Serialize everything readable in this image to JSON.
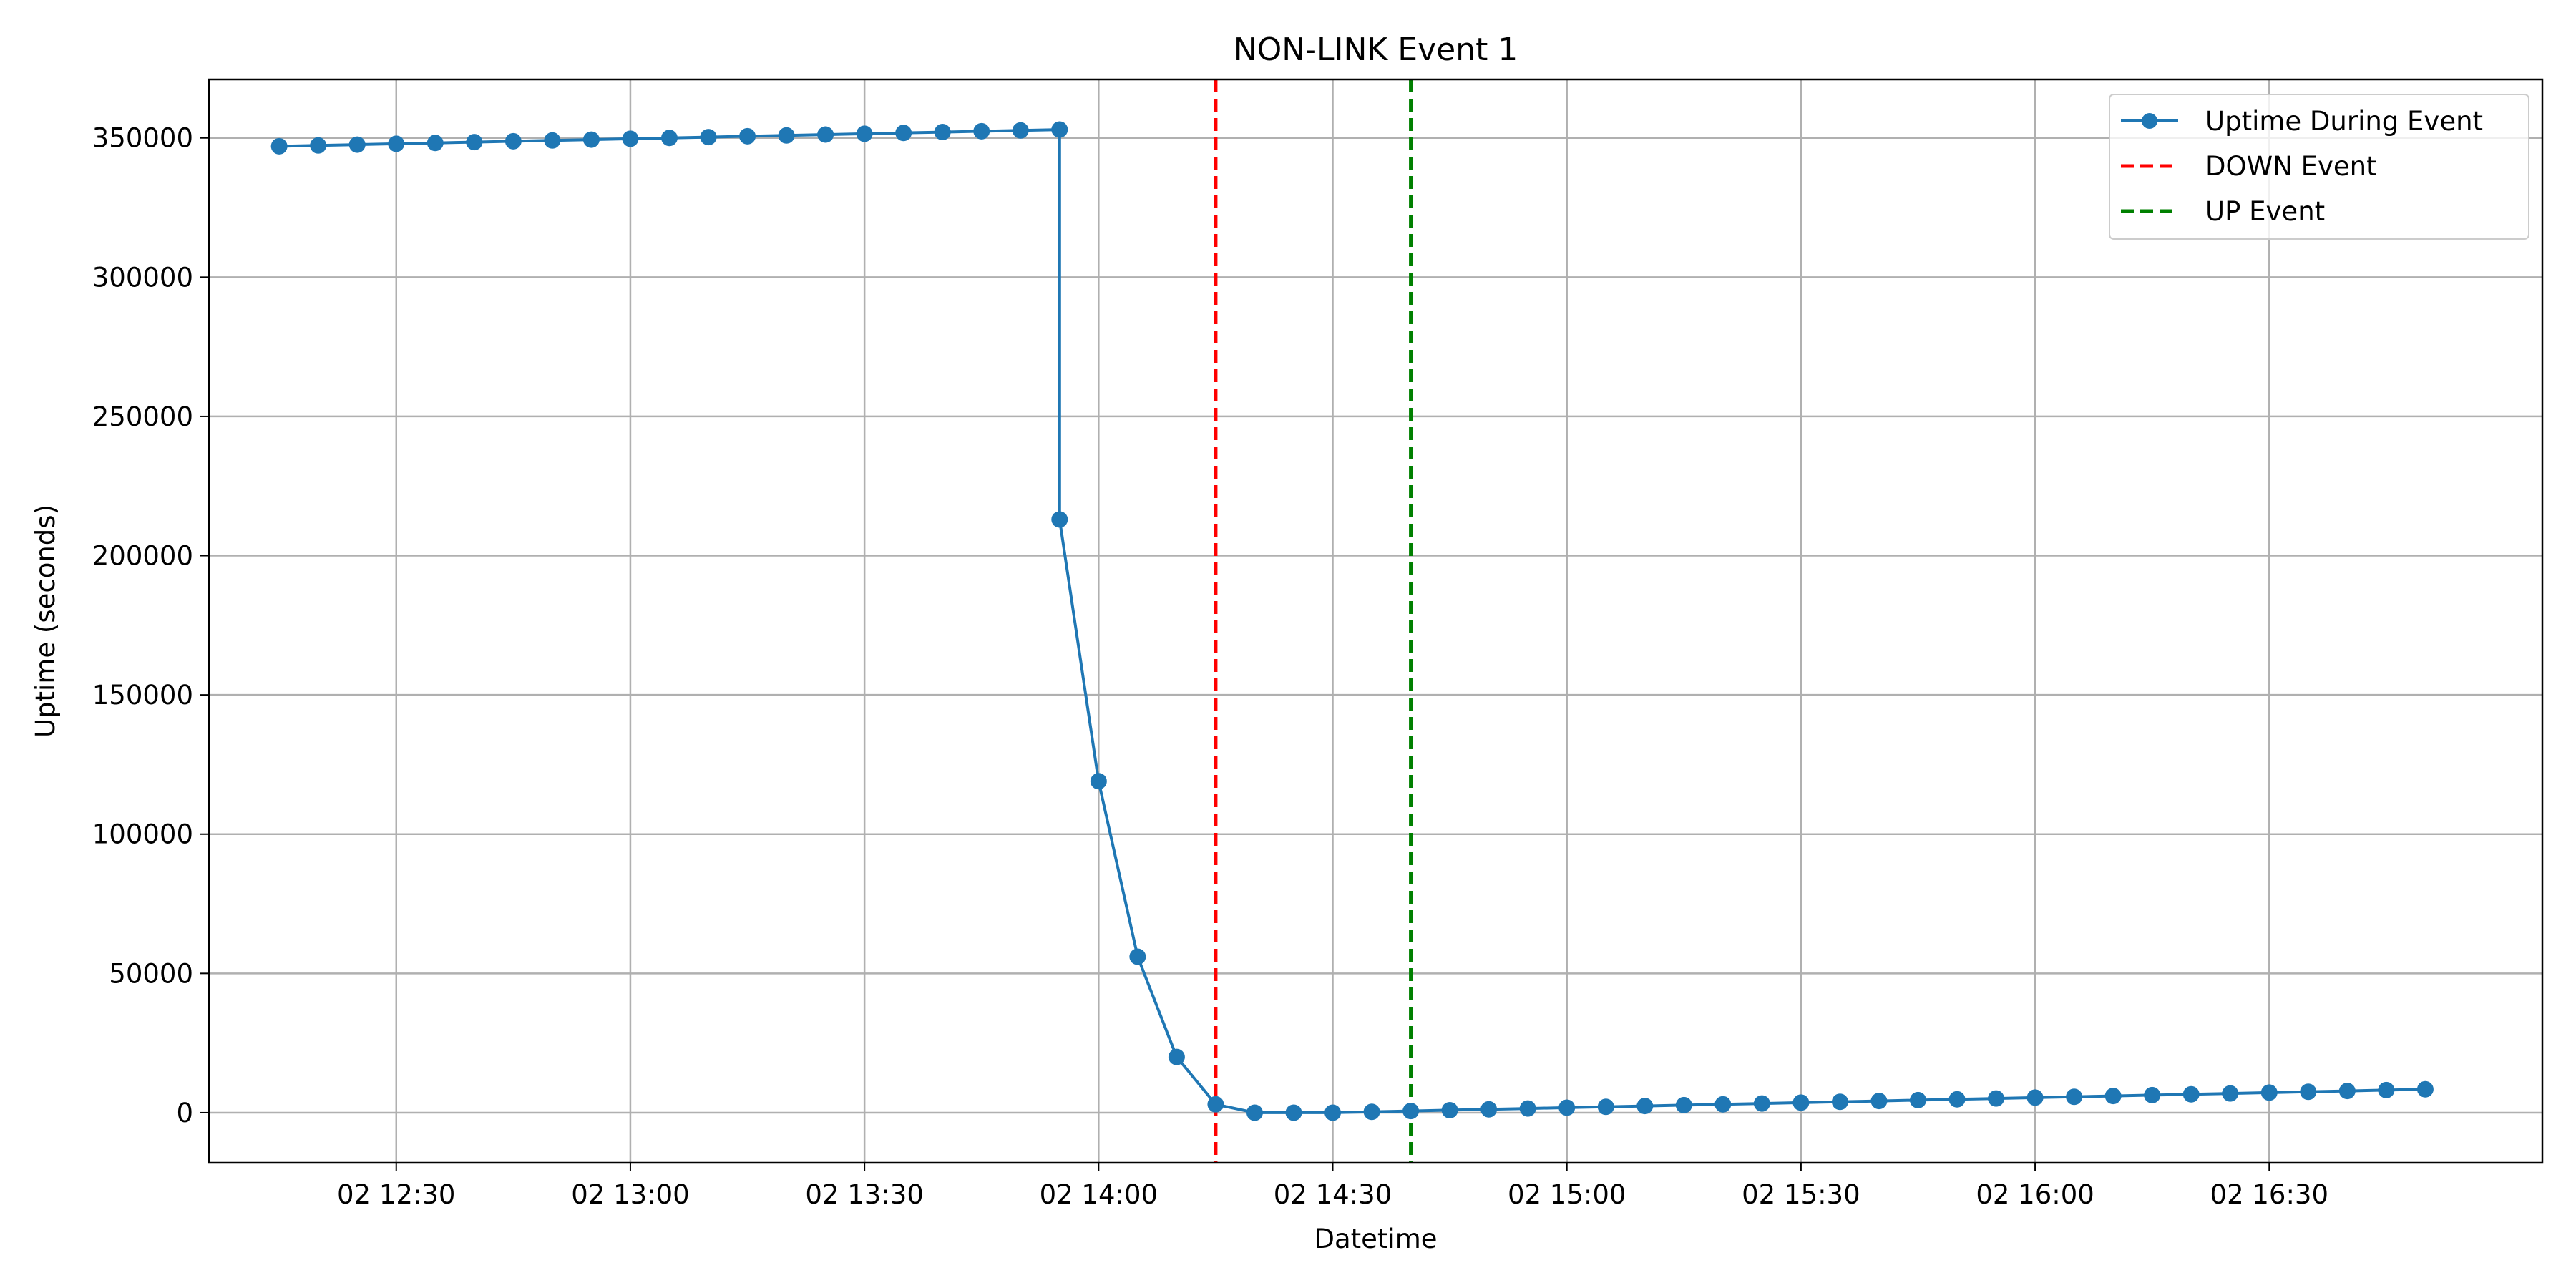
{
  "chart_data": {
    "type": "line",
    "title": "NON-LINK Event 1",
    "xlabel": "Datetime",
    "ylabel": "Uptime (seconds)",
    "x_ticks": [
      "02 12:30",
      "02 13:00",
      "02 13:30",
      "02 14:00",
      "02 14:30",
      "02 15:00",
      "02 15:30",
      "02 16:00",
      "02 16:30"
    ],
    "x_tick_values": [
      "12:30",
      "13:00",
      "13:30",
      "14:00",
      "14:30",
      "15:00",
      "15:30",
      "16:00",
      "16:30"
    ],
    "xlim": [
      "12:06",
      "17:05"
    ],
    "ylim": [
      -18000,
      371000
    ],
    "y_ticks": [
      0,
      50000,
      100000,
      150000,
      200000,
      250000,
      300000,
      350000
    ],
    "y_tick_labels": [
      "0",
      "50000",
      "100000",
      "150000",
      "200000",
      "250000",
      "300000",
      "350000"
    ],
    "grid": true,
    "legend_position": "top-right",
    "series": [
      {
        "name": "Uptime During Event",
        "color": "#1f77b4",
        "marker": "circle",
        "x": [
          "12:15",
          "12:20",
          "12:25",
          "12:30",
          "12:35",
          "12:40",
          "12:45",
          "12:50",
          "12:55",
          "13:00",
          "13:05",
          "13:10",
          "13:15",
          "13:20",
          "13:25",
          "13:30",
          "13:35",
          "13:40",
          "13:45",
          "13:50",
          "13:55",
          "13:55",
          "14:00",
          "14:05",
          "14:10",
          "14:15",
          "14:20",
          "14:25",
          "14:30",
          "14:35",
          "14:40",
          "14:45",
          "14:50",
          "14:55",
          "15:00",
          "15:05",
          "15:10",
          "15:15",
          "15:20",
          "15:25",
          "15:30",
          "15:35",
          "15:40",
          "15:45",
          "15:50",
          "15:55",
          "16:00",
          "16:05",
          "16:10",
          "16:15",
          "16:20",
          "16:25",
          "16:30",
          "16:35",
          "16:40",
          "16:45",
          "16:50"
        ],
        "y": [
          347000,
          347300,
          347600,
          347900,
          348200,
          348500,
          348800,
          349100,
          349400,
          349700,
          350000,
          350300,
          350600,
          350900,
          351200,
          351500,
          351800,
          352100,
          352400,
          352700,
          353000,
          213000,
          119000,
          56000,
          20000,
          3000,
          0,
          0,
          0,
          300,
          600,
          900,
          1200,
          1500,
          1800,
          2100,
          2400,
          2700,
          3000,
          3300,
          3600,
          3900,
          4200,
          4500,
          4800,
          5100,
          5400,
          5700,
          6000,
          6300,
          6600,
          6900,
          7200,
          7500,
          7800,
          8100,
          8400
        ]
      },
      {
        "name": "DOWN Event",
        "color": "#ff0000",
        "style": "dashed-vertical",
        "x_value": "14:15"
      },
      {
        "name": "UP Event",
        "color": "#008000",
        "style": "dashed-vertical",
        "x_value": "14:40"
      }
    ]
  }
}
